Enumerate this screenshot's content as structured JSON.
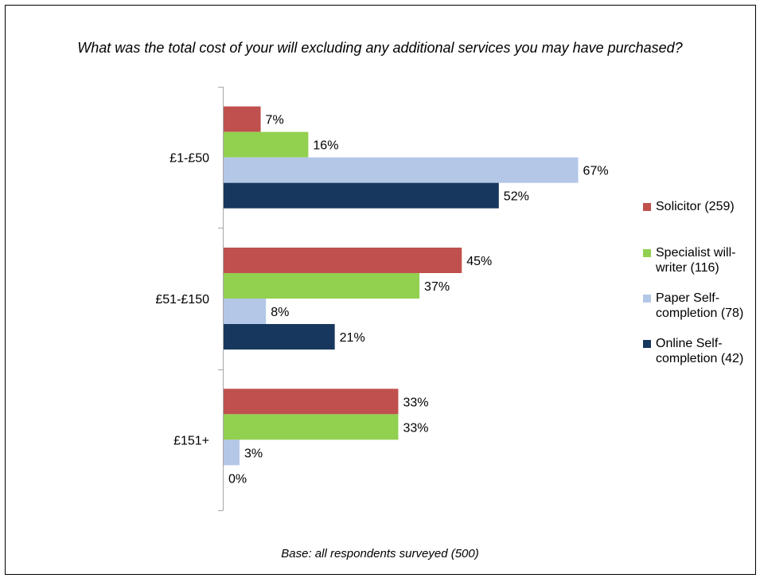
{
  "chart_data": {
    "type": "bar",
    "orientation": "horizontal",
    "title": "What was the total cost of your will excluding any additional services you may have purchased?",
    "footnote": "Base: all respondents surveyed (500)",
    "categories": [
      "£1-£50",
      "£51-£150",
      "£151+"
    ],
    "series": [
      {
        "name": "Solicitor (259)",
        "color": "#c0504d",
        "values": [
          7,
          45,
          33
        ],
        "labels": [
          "7%",
          "45%",
          "33%"
        ]
      },
      {
        "name": "Specialist will-writer (116)",
        "color": "#92d050",
        "values": [
          16,
          37,
          33
        ],
        "labels": [
          "16%",
          "37%",
          "33%"
        ]
      },
      {
        "name": "Paper Self-completion (78)",
        "color": "#b4c7e7",
        "values": [
          67,
          8,
          3
        ],
        "labels": [
          "67%",
          "8%",
          "3%"
        ]
      },
      {
        "name": "Online Self-completion (42)",
        "color": "#17375e",
        "values": [
          52,
          21,
          0
        ],
        "labels": [
          "52%",
          "21%",
          "0%"
        ]
      }
    ],
    "xlim": [
      0,
      100
    ],
    "grid": false,
    "legend_position": "right"
  }
}
